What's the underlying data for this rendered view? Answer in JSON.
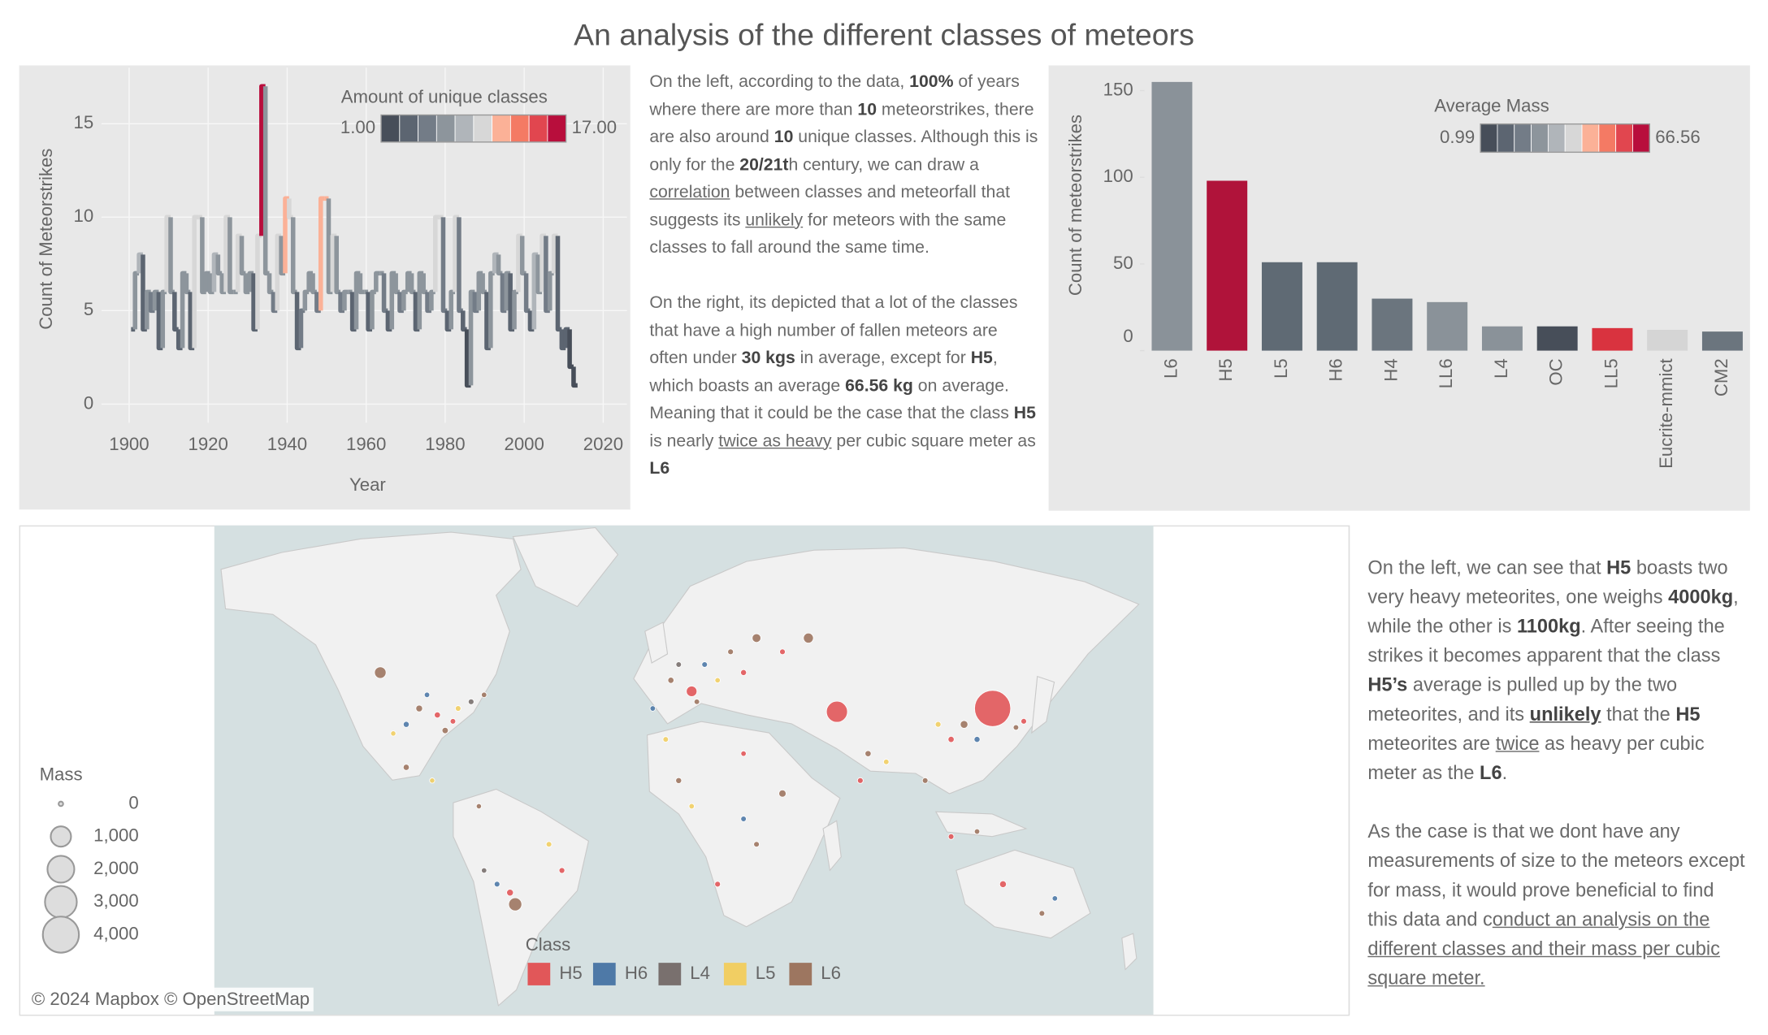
{
  "title": "An analysis of the different classes of meteors",
  "chart_data": [
    {
      "type": "line",
      "x_label": "Year",
      "y_label": "Count of Meteorstrikes",
      "x": [
        1901,
        1902,
        1903,
        1904,
        1905,
        1906,
        1907,
        1908,
        1909,
        1910,
        1911,
        1912,
        1913,
        1914,
        1915,
        1916,
        1917,
        1918,
        1919,
        1920,
        1921,
        1922,
        1923,
        1924,
        1925,
        1926,
        1927,
        1928,
        1929,
        1930,
        1931,
        1932,
        1933,
        1934,
        1935,
        1936,
        1937,
        1938,
        1939,
        1940,
        1941,
        1942,
        1943,
        1944,
        1945,
        1946,
        1947,
        1948,
        1949,
        1950,
        1951,
        1952,
        1953,
        1954,
        1955,
        1956,
        1957,
        1958,
        1959,
        1960,
        1961,
        1962,
        1963,
        1964,
        1965,
        1966,
        1967,
        1968,
        1969,
        1970,
        1971,
        1972,
        1973,
        1974,
        1975,
        1976,
        1977,
        1978,
        1979,
        1980,
        1981,
        1982,
        1983,
        1984,
        1985,
        1986,
        1987,
        1988,
        1989,
        1990,
        1991,
        1992,
        1993,
        1994,
        1995,
        1996,
        1997,
        1998,
        1999,
        2000,
        2001,
        2002,
        2003,
        2004,
        2005,
        2006,
        2007,
        2008,
        2009,
        2010,
        2011,
        2012,
        2013
      ],
      "values": [
        4,
        7,
        8,
        4,
        6,
        5,
        6,
        3,
        6,
        10,
        6,
        4,
        3,
        7,
        6,
        3,
        10,
        10,
        6,
        7,
        6,
        8,
        7,
        6,
        10,
        6,
        6,
        9,
        7,
        6,
        7,
        4,
        9,
        17,
        7,
        6,
        5,
        9,
        7,
        11,
        10,
        6,
        3,
        5,
        6,
        7,
        6,
        5,
        11,
        11,
        6,
        9,
        6,
        5,
        6,
        6,
        4,
        7,
        6,
        6,
        4,
        6,
        7,
        7,
        5,
        4,
        7,
        6,
        5,
        6,
        7,
        6,
        4,
        7,
        6,
        5,
        6,
        10,
        10,
        5,
        4,
        6,
        10,
        5,
        4,
        1,
        6,
        5,
        7,
        6,
        3,
        7,
        8,
        7,
        5,
        7,
        4,
        6,
        9,
        7,
        5,
        4,
        8,
        6,
        9,
        5,
        7,
        9,
        4,
        3,
        4,
        2,
        1
      ],
      "xlim": [
        1893,
        2026
      ],
      "ylim": [
        -1,
        18
      ],
      "xticks": [
        1900,
        1920,
        1940,
        1960,
        1980,
        2000,
        2020
      ],
      "yticks": [
        0,
        5,
        10,
        15
      ],
      "grid": true,
      "legend": {
        "title": "Amount of unique classes",
        "min": {
          "value": 1,
          "label": "1.00"
        },
        "max": {
          "value": 17,
          "label": "17.00"
        },
        "colors": [
          "#474e59",
          "#5c6571",
          "#737c87",
          "#8d959c",
          "#b0b5ba",
          "#d7d7d7",
          "#fbb197",
          "#f47a64",
          "#e1464f",
          "#b80e3c"
        ]
      }
    },
    {
      "type": "bar",
      "y_label": "Count of meteorstrikes",
      "categories": [
        "L6",
        "H5",
        "L5",
        "H6",
        "H4",
        "LL6",
        "L4",
        "OC",
        "LL5",
        "Eucrite-mmict",
        "CM2"
      ],
      "values": [
        155,
        98,
        51,
        51,
        30,
        28,
        14,
        14,
        13,
        12,
        11
      ],
      "colors": [
        "#8a9299",
        "#b0133a",
        "#5f6a74",
        "#5f6a74",
        "#6b757e",
        "#8a9299",
        "#8a9299",
        "#474e59",
        "#d9333f",
        "#d5d5d5",
        "#6b757e"
      ],
      "ylim": [
        0,
        160
      ],
      "yticks": [
        0,
        50,
        100,
        150
      ],
      "legend": {
        "title": "Average Mass",
        "min": {
          "value": 0.99,
          "label": "0.99"
        },
        "max": {
          "value": 66.56,
          "label": "66.56"
        },
        "colors": [
          "#474e59",
          "#5c6571",
          "#737c87",
          "#8d959c",
          "#b0b5ba",
          "#d7d7d7",
          "#fbb197",
          "#f47a64",
          "#e1464f",
          "#b80e3c"
        ]
      }
    },
    {
      "type": "map",
      "legend_title": "Class",
      "xlim": [
        -174,
        188
      ],
      "ylim": [
        -61,
        75
      ],
      "size_legend": {
        "title": "Mass",
        "ticks": [
          0,
          {
            "value": 1000,
            "label": "1,000"
          },
          {
            "value": 2000,
            "label": "2,000"
          },
          {
            "value": 3000,
            "label": "3,000"
          },
          {
            "value": 4000,
            "label": "4,000"
          }
        ]
      },
      "attribution": "© 2024 Mapbox © OpenStreetMap",
      "series": [
        {
          "name": "H5",
          "color": "#e15759",
          "lon": [
            126,
            66,
            -88,
            -82,
            -60,
            -40,
            10,
            30,
            45,
            20,
            30,
            75,
            110,
            138,
            110,
            130
          ],
          "lat": [
            40,
            39,
            38,
            36,
            -28,
            -20,
            45,
            50,
            55,
            -25,
            25,
            15,
            30,
            36,
            -7,
            -25
          ],
          "mass": [
            4000,
            1100,
            10,
            4,
            20,
            6,
            150,
            8,
            5,
            6,
            3,
            6,
            10,
            5,
            5,
            20
          ]
        },
        {
          "name": "H6",
          "color": "#4e79a7",
          "lon": [
            -100,
            -92,
            -65,
            15,
            -5,
            30,
            120,
            150
          ],
          "lat": [
            35,
            44,
            -25,
            52,
            40,
            0,
            30,
            -30
          ],
          "mass": [
            8,
            3,
            5,
            5,
            3,
            4,
            8,
            3
          ]
        },
        {
          "name": "L4",
          "color": "#79706e",
          "lon": [
            -75,
            -70,
            5
          ],
          "lat": [
            42,
            -20,
            52
          ],
          "mass": [
            6,
            3,
            4
          ]
        },
        {
          "name": "L5",
          "color": "#f1ce63",
          "lon": [
            -80,
            -105,
            -90,
            -45,
            20,
            10,
            0,
            85,
            105
          ],
          "lat": [
            40,
            32,
            15,
            -10,
            48,
            5,
            30,
            22,
            35
          ],
          "mass": [
            5,
            2,
            2,
            5,
            3,
            3,
            4,
            4,
            6
          ]
        },
        {
          "name": "L6",
          "color": "#9d7660",
          "lon": [
            -95,
            -85,
            -110,
            -70,
            -100,
            -58,
            -72,
            2,
            25,
            12,
            35,
            55,
            5,
            35,
            45,
            78,
            100,
            115,
            135,
            120,
            145
          ],
          "lat": [
            40,
            33,
            50,
            44,
            20,
            -32,
            5,
            48,
            55,
            42,
            58,
            58,
            15,
            -10,
            10,
            25,
            15,
            35,
            34,
            -5,
            -35
          ],
          "mass": [
            20,
            12,
            200,
            3,
            10,
            300,
            2,
            10,
            6,
            4,
            70,
            120,
            8,
            5,
            30,
            10,
            5,
            40,
            4,
            3,
            5
          ]
        }
      ]
    }
  ],
  "text_left": {
    "paragraphs": [
      [
        "On the left,  according to the data, ",
        {
          "bold": "100%"
        },
        " of years where there are more than ",
        {
          "bold": "10"
        },
        " meteorstrikes, there are also around ",
        {
          "bold": "10"
        },
        " unique classes. Although this is only for the ",
        {
          "bold": "20/21t"
        },
        "h century, we can draw a ",
        {
          "underline": "correlation"
        },
        " between classes and meteorfall that suggests its ",
        {
          "underline": "unlikely"
        },
        " for meteors with the same classes to fall around the same time."
      ],
      [
        "On the right, its depicted that a lot of the classes that have a high number of fallen meteors are often under ",
        {
          "bold": "30 kgs"
        },
        " in average, except for ",
        {
          "bold": "H5"
        },
        ", which boasts an average ",
        {
          "bold": "66.56 kg"
        },
        " on average. Meaning that it could be the case that the class ",
        {
          "bold": "H5"
        },
        " is nearly ",
        {
          "underline": "twice as heavy"
        },
        " per cubic square meter as ",
        {
          "bold": "L6"
        }
      ]
    ]
  },
  "text_right": {
    "paragraphs": [
      [
        "On the left, we can see that ",
        {
          "bold": "H5"
        },
        " boasts two very heavy meteorites, one weighs ",
        {
          "bold": "4000kg"
        },
        ", while the other is ",
        {
          "bold": "1100kg"
        },
        ". After seeing the strikes it becomes apparent that the class ",
        {
          "bold": "H5’s"
        },
        " average is pulled up by the two meteorites, and its ",
        {
          "strong": "unlikely"
        },
        " that the ",
        {
          "bold": "H5"
        },
        " meteorites are ",
        {
          "underline": "twice"
        },
        " as heavy per cubic meter as the ",
        {
          "bold": "L6"
        },
        "."
      ],
      [
        "As the case is that we dont have any measurements of size to the meteors except for mass, it would prove beneficial to find this data and c",
        {
          "underline": "onduct an analysis on the different classes and their mass per cubic square meter."
        }
      ]
    ]
  }
}
